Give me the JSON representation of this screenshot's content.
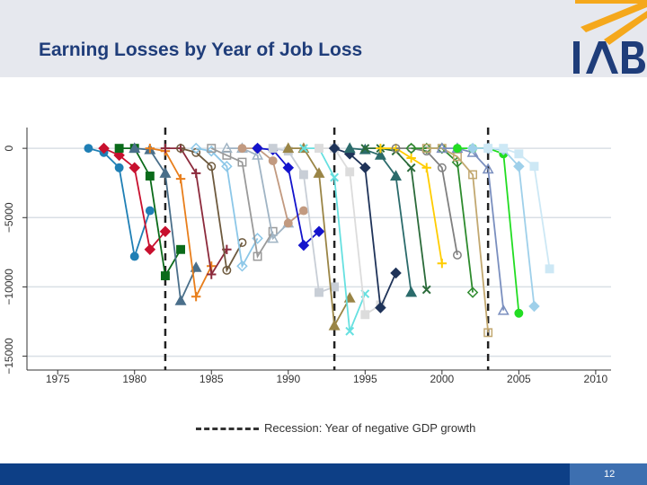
{
  "slide": {
    "title": "Earning Losses by Year of Job Loss",
    "page_number": "12",
    "colors": {
      "header_bg": "#e6e8ee",
      "title": "#1f3d7a",
      "footer": "#0d3f86",
      "logo_orange": "#f5a81c",
      "logo_blue": "#1f3d7a"
    }
  },
  "logo": {
    "text": "IAB"
  },
  "chart_data": {
    "type": "line",
    "title": "",
    "xlabel": "",
    "ylabel": "",
    "xlim": [
      1973,
      2011
    ],
    "ylim": [
      -16000,
      1500
    ],
    "x_ticks": [
      1975,
      1980,
      1985,
      1990,
      1995,
      2000,
      2005,
      2010
    ],
    "y_ticks": [
      0,
      -5000,
      -10000,
      -15000
    ],
    "y_tick_labels": [
      "0",
      "−5000",
      "−10000",
      "−15000"
    ],
    "grid": true,
    "recession_years": [
      1982,
      1993,
      2003
    ],
    "legend": {
      "position": "bottom",
      "label": "Recession: Year of negative GDP growth"
    },
    "series": [
      {
        "year_of_loss": 1980,
        "color": "#1f7fb5",
        "marker": "circle",
        "x": [
          1977,
          1978,
          1979,
          1980,
          1981
        ],
        "values": [
          0,
          -300,
          -1400,
          -7800,
          -4500
        ]
      },
      {
        "year_of_loss": 1981,
        "color": "#c8102e",
        "marker": "diamond",
        "x": [
          1978,
          1979,
          1980,
          1981,
          1982
        ],
        "values": [
          0,
          -500,
          -1400,
          -7300,
          -6000
        ]
      },
      {
        "year_of_loss": 1982,
        "color": "#0b6b1a",
        "marker": "square",
        "x": [
          1979,
          1980,
          1981,
          1982,
          1983
        ],
        "values": [
          0,
          0,
          -2000,
          -9200,
          -7300
        ]
      },
      {
        "year_of_loss": 1983,
        "color": "#4a6f8a",
        "marker": "triangle",
        "x": [
          1980,
          1981,
          1982,
          1983,
          1984
        ],
        "values": [
          0,
          -100,
          -1800,
          -11000,
          -8600
        ]
      },
      {
        "year_of_loss": 1984,
        "color": "#e87e1b",
        "marker": "plus",
        "x": [
          1981,
          1982,
          1983,
          1984,
          1985
        ],
        "values": [
          0,
          -200,
          -2200,
          -10700,
          -8500
        ]
      },
      {
        "year_of_loss": 1985,
        "color": "#8c2a3c",
        "marker": "plus",
        "x": [
          1982,
          1983,
          1984,
          1985,
          1986
        ],
        "values": [
          0,
          0,
          -1800,
          -9100,
          -7300
        ]
      },
      {
        "year_of_loss": 1986,
        "color": "#6e5a3e",
        "marker": "circle-open",
        "x": [
          1983,
          1984,
          1985,
          1986,
          1987
        ],
        "values": [
          0,
          -300,
          -1300,
          -8800,
          -6800
        ]
      },
      {
        "year_of_loss": 1987,
        "color": "#8cc7e8",
        "marker": "diamond-open",
        "x": [
          1984,
          1985,
          1986,
          1987,
          1988
        ],
        "values": [
          0,
          -200,
          -1300,
          -8500,
          -6500
        ]
      },
      {
        "year_of_loss": 1988,
        "color": "#9a9a9a",
        "marker": "square-open",
        "x": [
          1985,
          1986,
          1987,
          1988,
          1989
        ],
        "values": [
          0,
          -500,
          -1000,
          -7800,
          -6000
        ]
      },
      {
        "year_of_loss": 1989,
        "color": "#a0b4c4",
        "marker": "triangle-open",
        "x": [
          1986,
          1987,
          1988,
          1989,
          1990
        ],
        "values": [
          0,
          0,
          -500,
          -6500,
          -5400
        ]
      },
      {
        "year_of_loss": 1990,
        "color": "#c29a80",
        "marker": "circle",
        "x": [
          1987,
          1988,
          1989,
          1990,
          1991
        ],
        "values": [
          0,
          0,
          -900,
          -5400,
          -4500
        ]
      },
      {
        "year_of_loss": 1991,
        "color": "#1414cc",
        "marker": "diamond",
        "x": [
          1988,
          1989,
          1990,
          1991,
          1992
        ],
        "values": [
          0,
          -100,
          -1400,
          -7000,
          -6000
        ]
      },
      {
        "year_of_loss": 1992,
        "color": "#c8ced6",
        "marker": "square",
        "x": [
          1989,
          1990,
          1991,
          1992,
          1993
        ],
        "values": [
          0,
          -200,
          -1900,
          -10400,
          -10000
        ]
      },
      {
        "year_of_loss": 1993,
        "color": "#9a8546",
        "marker": "triangle",
        "x": [
          1990,
          1991,
          1992,
          1993,
          1994
        ],
        "values": [
          0,
          0,
          -1800,
          -12800,
          -10800
        ]
      },
      {
        "year_of_loss": 1994,
        "color": "#66e0e0",
        "marker": "x",
        "x": [
          1991,
          1992,
          1993,
          1994,
          1995
        ],
        "values": [
          0,
          0,
          -2100,
          -13200,
          -10500
        ]
      },
      {
        "year_of_loss": 1995,
        "color": "#dcdcdc",
        "marker": "square",
        "x": [
          1992,
          1993,
          1994,
          1995,
          1996
        ],
        "values": [
          0,
          0,
          -1700,
          -12000,
          -11300
        ]
      },
      {
        "year_of_loss": 1996,
        "color": "#1f3359",
        "marker": "diamond",
        "x": [
          1993,
          1994,
          1995,
          1996,
          1997
        ],
        "values": [
          0,
          -400,
          -1400,
          -11500,
          -9000
        ]
      },
      {
        "year_of_loss": 1997,
        "color": "#2b6b6b",
        "marker": "triangle",
        "x": [
          1994,
          1995,
          1996,
          1997,
          1998
        ],
        "values": [
          0,
          -100,
          -500,
          -2000,
          -10400
        ]
      },
      {
        "year_of_loss": 1998,
        "color": "#2b6b3a",
        "marker": "x",
        "x": [
          1995,
          1996,
          1997,
          1998,
          1999
        ],
        "values": [
          0,
          0,
          -200,
          -1400,
          -10200
        ]
      },
      {
        "year_of_loss": 1999,
        "color": "#ffcc00",
        "marker": "plus",
        "x": [
          1996,
          1997,
          1998,
          1999,
          2000
        ],
        "values": [
          0,
          0,
          -700,
          -1400,
          -8300
        ]
      },
      {
        "year_of_loss": 2000,
        "color": "#808080",
        "marker": "circle-open",
        "x": [
          1997,
          1998,
          1999,
          2000,
          2001
        ],
        "values": [
          0,
          0,
          -200,
          -1400,
          -7700
        ]
      },
      {
        "year_of_loss": 2001,
        "color": "#2e8b2e",
        "marker": "diamond-open",
        "x": [
          1998,
          1999,
          2000,
          2001,
          2002
        ],
        "values": [
          0,
          0,
          0,
          -1000,
          -10400
        ]
      },
      {
        "year_of_loss": 2002,
        "color": "#c2a870",
        "marker": "square-open",
        "x": [
          1999,
          2000,
          2001,
          2002,
          2003
        ],
        "values": [
          0,
          0,
          -600,
          -1900,
          -13300
        ]
      },
      {
        "year_of_loss": 2003,
        "color": "#7a8fbf",
        "marker": "triangle-open",
        "x": [
          2000,
          2001,
          2002,
          2003,
          2004
        ],
        "values": [
          0,
          0,
          -300,
          -1500,
          -11700
        ]
      },
      {
        "year_of_loss": 2004,
        "color": "#22dd22",
        "marker": "circle",
        "x": [
          2001,
          2002,
          2003,
          2004,
          2005
        ],
        "values": [
          0,
          0,
          0,
          -400,
          -11900
        ]
      },
      {
        "year_of_loss": 2005,
        "color": "#9fd0ea",
        "marker": "diamond",
        "x": [
          2002,
          2003,
          2004,
          2005,
          2006
        ],
        "values": [
          0,
          0,
          -100,
          -1300,
          -11400
        ]
      },
      {
        "year_of_loss": 2006,
        "color": "#cde8f5",
        "marker": "square",
        "x": [
          2003,
          2004,
          2005,
          2006,
          2007
        ],
        "values": [
          0,
          0,
          -400,
          -1300,
          -8700
        ]
      }
    ]
  }
}
